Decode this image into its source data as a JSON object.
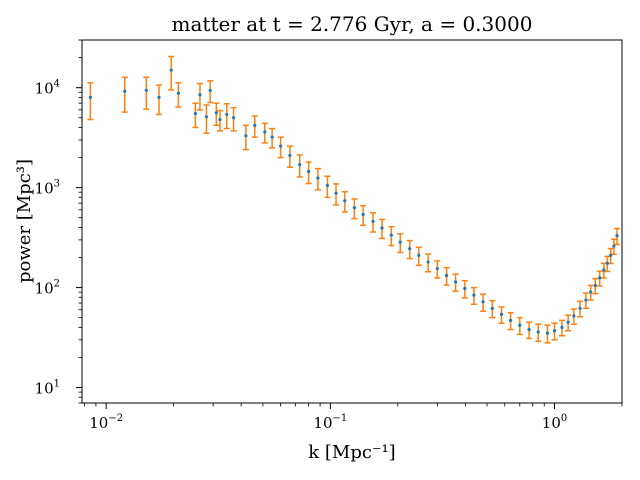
{
  "chart_data": {
    "type": "scatter",
    "title": "matter at t = 2.776 Gyr, a = 0.3000",
    "xlabel": "k [Mpc⁻¹]",
    "ylabel": "power [Mpc³]",
    "xscale": "log",
    "yscale": "log",
    "xlim": [
      0.0078,
      2.0
    ],
    "ylim": [
      7,
      30000
    ],
    "grid": false,
    "legend": "none",
    "x_ticks": [
      {
        "base": "10",
        "exp": "−2",
        "value": 0.01
      },
      {
        "base": "10",
        "exp": "−1",
        "value": 0.1
      },
      {
        "base": "10",
        "exp": "0",
        "value": 1
      }
    ],
    "y_ticks": [
      {
        "base": "10",
        "exp": "1",
        "value": 10
      },
      {
        "base": "10",
        "exp": "2",
        "value": 100
      },
      {
        "base": "10",
        "exp": "3",
        "value": 1000
      },
      {
        "base": "10",
        "exp": "4",
        "value": 10000
      }
    ],
    "series": [
      {
        "color": "#1f77b4",
        "errorbar_color": "#ff7f0e",
        "x": [
          0.0085,
          0.0121,
          0.0151,
          0.0172,
          0.0195,
          0.021,
          0.025,
          0.0262,
          0.028,
          0.0291,
          0.031,
          0.0322,
          0.0345,
          0.037,
          0.042,
          0.046,
          0.051,
          0.055,
          0.06,
          0.066,
          0.073,
          0.08,
          0.088,
          0.097,
          0.106,
          0.116,
          0.128,
          0.14,
          0.155,
          0.17,
          0.187,
          0.205,
          0.226,
          0.248,
          0.273,
          0.3,
          0.33,
          0.362,
          0.398,
          0.437,
          0.48,
          0.528,
          0.58,
          0.637,
          0.7,
          0.77,
          0.846,
          0.93,
          1.0,
          1.08,
          1.15,
          1.22,
          1.3,
          1.38,
          1.45,
          1.52,
          1.59,
          1.66,
          1.72,
          1.78,
          1.84,
          1.9
        ],
        "y": [
          8000,
          9200,
          9400,
          8000,
          15000,
          8800,
          5500,
          8500,
          5100,
          9400,
          5600,
          4800,
          5400,
          5000,
          3300,
          4200,
          3600,
          3200,
          2600,
          2100,
          1700,
          1450,
          1250,
          1050,
          880,
          740,
          630,
          540,
          460,
          395,
          335,
          285,
          245,
          210,
          180,
          155,
          132,
          114,
          98,
          84,
          72,
          62,
          54,
          47,
          42,
          38,
          36,
          35,
          37,
          40,
          45,
          52,
          62,
          75,
          90,
          105,
          125,
          150,
          175,
          210,
          260,
          330
        ],
        "err": [
          3200,
          3500,
          3300,
          2600,
          5500,
          2400,
          1500,
          2500,
          1600,
          2300,
          1400,
          1100,
          1500,
          1300,
          900,
          1000,
          800,
          700,
          600,
          500,
          420,
          350,
          300,
          250,
          210,
          170,
          140,
          120,
          100,
          85,
          72,
          60,
          50,
          43,
          36,
          30,
          26,
          22,
          19,
          16,
          14,
          12,
          10,
          9,
          8,
          7,
          7,
          7,
          7,
          7,
          8,
          9,
          11,
          13,
          15,
          18,
          21,
          25,
          30,
          36,
          45,
          60
        ]
      }
    ]
  }
}
